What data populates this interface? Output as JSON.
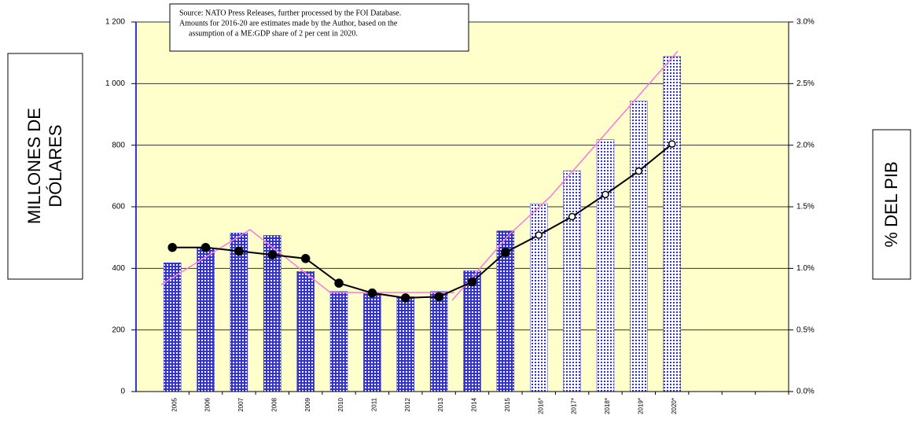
{
  "chart_data": {
    "type": "bar",
    "source_note": [
      "Source: NATO Press Releases, further processed by the FOI Database.",
      "Amounts for 2016-20 are estimates made by the Author, based on the",
      "assumption of a ME:GDP share of 2 per cent in 2020."
    ],
    "y_label": [
      "MILLONES DE",
      "DÓLARES"
    ],
    "y2_label": "% DEL PIB",
    "categories": [
      "2005",
      "2006",
      "2007",
      "2008",
      "2009",
      "2010",
      "2011",
      "2012",
      "2013",
      "2014",
      "2015",
      "2016*",
      "2017*",
      "2018*",
      "2019*",
      "2020*",
      null,
      null,
      null
    ],
    "series": [
      {
        "type": "bar",
        "color": "#3333cc",
        "values": [
          418,
          465,
          515,
          507,
          390,
          325,
          318,
          308,
          325,
          392,
          522,
          610,
          717,
          818,
          943,
          1088,
          null,
          null,
          null
        ]
      },
      {
        "type": "line",
        "axis": "y2",
        "color": "#000000",
        "values": [
          1.17,
          1.17,
          1.14,
          1.11,
          1.08,
          0.88,
          0.8,
          0.76,
          0.77,
          0.89,
          1.13,
          1.27,
          1.42,
          1.6,
          1.79,
          2.01,
          null,
          null,
          null
        ]
      }
    ],
    "ylim": [
      0,
      1200
    ],
    "yticks": [
      0,
      200,
      400,
      600,
      800,
      {
        "value": 1000,
        "label": "1 000"
      },
      {
        "value": 1200,
        "label": "1 200"
      }
    ],
    "y2lim": [
      0,
      3
    ],
    "y2ticks": [
      {
        "value": 0,
        "label": "0.0%"
      },
      {
        "value": 0.5,
        "label": "0.5%"
      },
      {
        "value": 1,
        "label": "1.0%"
      },
      {
        "value": 1.5,
        "label": "1.5%"
      },
      {
        "value": 2,
        "label": "2.0%"
      },
      {
        "value": 2.5,
        "label": "2.5%"
      },
      {
        "value": 3,
        "label": "3.0%"
      }
    ],
    "grid": true
  }
}
